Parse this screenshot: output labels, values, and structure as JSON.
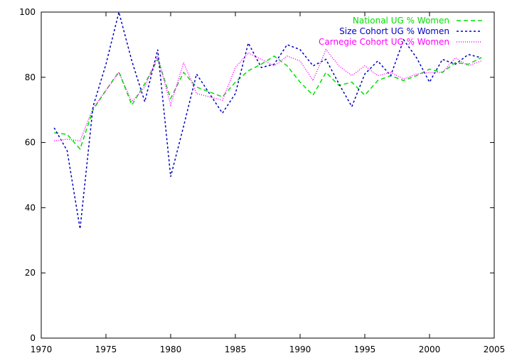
{
  "chart_data": {
    "type": "line",
    "title": "",
    "xlabel": "",
    "ylabel": "",
    "xlim": [
      1970,
      2005
    ],
    "ylim": [
      0,
      100
    ],
    "x_ticks": [
      1970,
      1975,
      1980,
      1985,
      1990,
      1995,
      2000,
      2005
    ],
    "y_ticks": [
      0,
      20,
      40,
      60,
      80,
      100
    ],
    "grid": false,
    "legend_position": "top-right",
    "x": [
      1971,
      1972,
      1973,
      1974,
      1975,
      1976,
      1977,
      1978,
      1979,
      1980,
      1981,
      1982,
      1983,
      1984,
      1985,
      1986,
      1987,
      1988,
      1989,
      1990,
      1991,
      1992,
      1993,
      1994,
      1995,
      1996,
      1997,
      1998,
      1999,
      2000,
      2001,
      2002,
      2003,
      2004
    ],
    "series": [
      {
        "name": "National UG % Women",
        "color": "#00e000",
        "dash": "6,4",
        "values": [
          63.0,
          62.5,
          58.0,
          70.0,
          76.0,
          81.7,
          71.5,
          78.0,
          85.5,
          73.5,
          81.5,
          77.0,
          75.5,
          74.0,
          78.5,
          82.0,
          84.0,
          86.5,
          83.5,
          78.5,
          74.5,
          81.5,
          77.5,
          78.5,
          74.5,
          79.0,
          80.5,
          79.0,
          80.5,
          82.5,
          81.5,
          84.5,
          84.0,
          86.0
        ]
      },
      {
        "name": "Size Cohort UG % Women",
        "color": "#0000c0",
        "dash": "3,3",
        "values": [
          64.5,
          57.5,
          33.5,
          71.0,
          84.0,
          100.0,
          85.0,
          72.5,
          88.5,
          49.5,
          65.0,
          81.0,
          75.0,
          69.0,
          75.0,
          90.5,
          83.0,
          84.0,
          90.0,
          88.5,
          83.5,
          85.5,
          78.0,
          71.0,
          81.0,
          85.0,
          80.5,
          91.5,
          86.0,
          78.5,
          85.5,
          84.0,
          87.0,
          86.0
        ]
      },
      {
        "name": "Carnegie Cohort UG % Women",
        "color": "#ff00ff",
        "dash": "1,2",
        "values": [
          60.5,
          61.0,
          60.5,
          70.5,
          76.0,
          81.5,
          72.5,
          77.0,
          86.5,
          71.5,
          84.5,
          75.0,
          74.0,
          73.0,
          83.0,
          87.5,
          85.5,
          83.5,
          86.5,
          85.0,
          79.0,
          88.5,
          83.5,
          80.5,
          83.5,
          80.5,
          81.5,
          79.5,
          81.0,
          81.5,
          81.5,
          86.0,
          83.5,
          85.0
        ]
      }
    ]
  }
}
